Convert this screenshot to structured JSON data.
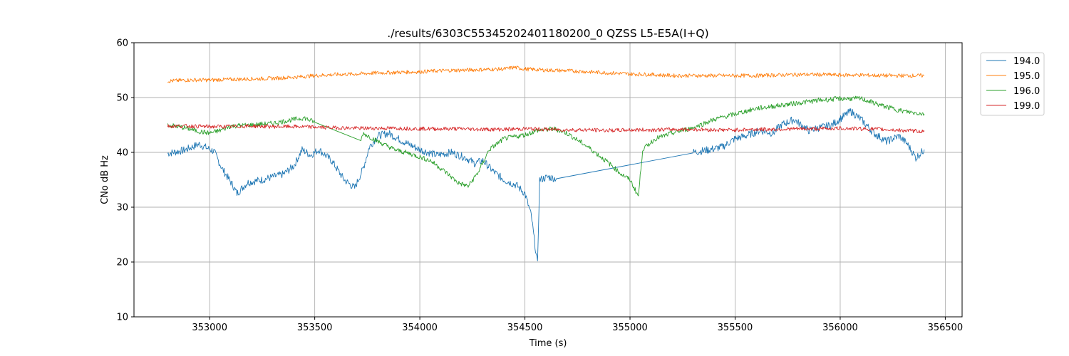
{
  "chart_data": {
    "type": "line",
    "title": "./results/6303C55345202401180200_0 QZSS L5-E5A(I+Q)",
    "xlabel": "Time (s)",
    "ylabel": "CNo dB Hz",
    "xlim": [
      352640,
      356580
    ],
    "ylim": [
      10,
      60
    ],
    "xticks": [
      353000,
      353500,
      354000,
      354500,
      355000,
      355500,
      356000,
      356500
    ],
    "xtick_labels": [
      "353000",
      "353500",
      "354000",
      "354500",
      "355000",
      "355500",
      "356000",
      "356500"
    ],
    "yticks": [
      10,
      20,
      30,
      40,
      50,
      60
    ],
    "ytick_labels": [
      "10",
      "20",
      "30",
      "40",
      "50",
      "60"
    ],
    "grid": true,
    "legend_position": "upper-right-outside",
    "series": [
      {
        "name": "194.0",
        "color": "#1f77b4",
        "points": [
          [
            352800,
            39.8
          ],
          [
            352880,
            40.4
          ],
          [
            352950,
            41.5
          ],
          [
            353020,
            40.2
          ],
          [
            353060,
            37.0
          ],
          [
            353110,
            34.0
          ],
          [
            353130,
            32.5
          ],
          [
            353180,
            34.5
          ],
          [
            353250,
            35.0
          ],
          [
            353350,
            36.0
          ],
          [
            353400,
            37.5
          ],
          [
            353440,
            40.5
          ],
          [
            353480,
            39.5
          ],
          [
            353520,
            40.5
          ],
          [
            353580,
            38.5
          ],
          [
            353640,
            35.0
          ],
          [
            353690,
            33.5
          ],
          [
            353730,
            37.0
          ],
          [
            353760,
            41.0
          ],
          [
            353800,
            43.0
          ],
          [
            353850,
            43.5
          ],
          [
            353920,
            42.0
          ],
          [
            354000,
            40.5
          ],
          [
            354080,
            39.5
          ],
          [
            354150,
            40.0
          ],
          [
            354220,
            39.0
          ],
          [
            354260,
            38.0
          ],
          [
            354300,
            38.5
          ],
          [
            354350,
            36.5
          ],
          [
            354400,
            35.0
          ],
          [
            354460,
            34.0
          ],
          [
            354500,
            32.5
          ],
          [
            354530,
            28.5
          ],
          [
            354560,
            19.5
          ],
          [
            354570,
            35.0
          ],
          [
            354610,
            35.5
          ],
          [
            354650,
            35.2
          ],
          [
            355300,
            40.0
          ],
          [
            355380,
            40.5
          ],
          [
            355440,
            41.0
          ],
          [
            355500,
            42.5
          ],
          [
            355550,
            43.0
          ],
          [
            355620,
            44.0
          ],
          [
            355680,
            43.5
          ],
          [
            355720,
            45.0
          ],
          [
            355780,
            46.0
          ],
          [
            355850,
            44.0
          ],
          [
            355900,
            44.5
          ],
          [
            355960,
            45.0
          ],
          [
            356050,
            47.5
          ],
          [
            356100,
            46.0
          ],
          [
            356160,
            43.5
          ],
          [
            356220,
            42.0
          ],
          [
            356280,
            43.0
          ],
          [
            356320,
            41.5
          ],
          [
            356360,
            39.0
          ],
          [
            356400,
            40.5
          ]
        ]
      },
      {
        "name": "195.0",
        "color": "#ff7f0e",
        "points": [
          [
            352800,
            53.0
          ],
          [
            352900,
            53.2
          ],
          [
            353000,
            53.2
          ],
          [
            353100,
            53.3
          ],
          [
            353200,
            53.4
          ],
          [
            353300,
            53.5
          ],
          [
            353400,
            53.7
          ],
          [
            353500,
            54.0
          ],
          [
            353600,
            54.2
          ],
          [
            353700,
            54.3
          ],
          [
            353800,
            54.5
          ],
          [
            353900,
            54.6
          ],
          [
            354000,
            54.7
          ],
          [
            354100,
            54.9
          ],
          [
            354200,
            55.0
          ],
          [
            354300,
            55.1
          ],
          [
            354400,
            55.2
          ],
          [
            354450,
            55.5
          ],
          [
            354500,
            55.2
          ],
          [
            354600,
            55.0
          ],
          [
            354700,
            54.9
          ],
          [
            354800,
            54.7
          ],
          [
            354900,
            54.5
          ],
          [
            355000,
            54.3
          ],
          [
            355100,
            54.2
          ],
          [
            355200,
            54.0
          ],
          [
            355300,
            54.0
          ],
          [
            355400,
            54.0
          ],
          [
            355500,
            54.0
          ],
          [
            355600,
            54.0
          ],
          [
            355700,
            54.1
          ],
          [
            355800,
            54.2
          ],
          [
            355900,
            54.2
          ],
          [
            356000,
            54.1
          ],
          [
            356100,
            54.1
          ],
          [
            356200,
            54.0
          ],
          [
            356300,
            54.0
          ],
          [
            356400,
            54.0
          ]
        ]
      },
      {
        "name": "196.0",
        "color": "#2ca02c",
        "points": [
          [
            352800,
            45.0
          ],
          [
            352880,
            44.5
          ],
          [
            352950,
            43.8
          ],
          [
            353000,
            43.5
          ],
          [
            353050,
            44.0
          ],
          [
            353100,
            44.8
          ],
          [
            353200,
            45.0
          ],
          [
            353300,
            45.3
          ],
          [
            353400,
            46.0
          ],
          [
            353450,
            46.3
          ],
          [
            353500,
            45.5
          ],
          [
            353720,
            42.2
          ],
          [
            353730,
            43.5
          ],
          [
            353800,
            42.0
          ],
          [
            353880,
            40.5
          ],
          [
            353950,
            39.8
          ],
          [
            354050,
            38.5
          ],
          [
            354120,
            36.5
          ],
          [
            354180,
            34.5
          ],
          [
            354230,
            33.8
          ],
          [
            354280,
            36.5
          ],
          [
            354330,
            40.5
          ],
          [
            354400,
            42.5
          ],
          [
            354500,
            43.2
          ],
          [
            354560,
            44.0
          ],
          [
            354640,
            44.3
          ],
          [
            354700,
            43.5
          ],
          [
            354800,
            41.0
          ],
          [
            354900,
            38.0
          ],
          [
            354960,
            36.0
          ],
          [
            355000,
            35.0
          ],
          [
            355040,
            32.0
          ],
          [
            355060,
            40.5
          ],
          [
            355120,
            42.5
          ],
          [
            355200,
            43.5
          ],
          [
            355300,
            44.5
          ],
          [
            355400,
            46.0
          ],
          [
            355500,
            47.0
          ],
          [
            355600,
            48.0
          ],
          [
            355700,
            48.5
          ],
          [
            355800,
            49.0
          ],
          [
            355900,
            49.5
          ],
          [
            356000,
            49.8
          ],
          [
            356100,
            49.8
          ],
          [
            356200,
            48.5
          ],
          [
            356300,
            47.5
          ],
          [
            356400,
            47.0
          ]
        ]
      },
      {
        "name": "199.0",
        "color": "#d62728",
        "points": [
          [
            352800,
            44.8
          ],
          [
            352900,
            44.8
          ],
          [
            353000,
            44.7
          ],
          [
            353100,
            44.7
          ],
          [
            353200,
            44.8
          ],
          [
            353300,
            44.7
          ],
          [
            353400,
            44.7
          ],
          [
            353500,
            44.6
          ],
          [
            353600,
            44.5
          ],
          [
            353700,
            44.4
          ],
          [
            353800,
            44.4
          ],
          [
            353900,
            44.4
          ],
          [
            354000,
            44.3
          ],
          [
            354100,
            44.3
          ],
          [
            354200,
            44.3
          ],
          [
            354300,
            44.2
          ],
          [
            354400,
            44.2
          ],
          [
            354500,
            44.3
          ],
          [
            354600,
            44.2
          ],
          [
            354700,
            44.1
          ],
          [
            354800,
            44.1
          ],
          [
            354900,
            44.0
          ],
          [
            355000,
            44.1
          ],
          [
            355100,
            44.1
          ],
          [
            355200,
            44.2
          ],
          [
            355300,
            44.2
          ],
          [
            355400,
            44.1
          ],
          [
            355500,
            44.1
          ],
          [
            355600,
            44.2
          ],
          [
            355700,
            44.2
          ],
          [
            355800,
            44.3
          ],
          [
            355900,
            44.3
          ],
          [
            356000,
            44.4
          ],
          [
            356100,
            44.3
          ],
          [
            356200,
            44.2
          ],
          [
            356300,
            44.0
          ],
          [
            356400,
            43.8
          ]
        ]
      }
    ]
  }
}
